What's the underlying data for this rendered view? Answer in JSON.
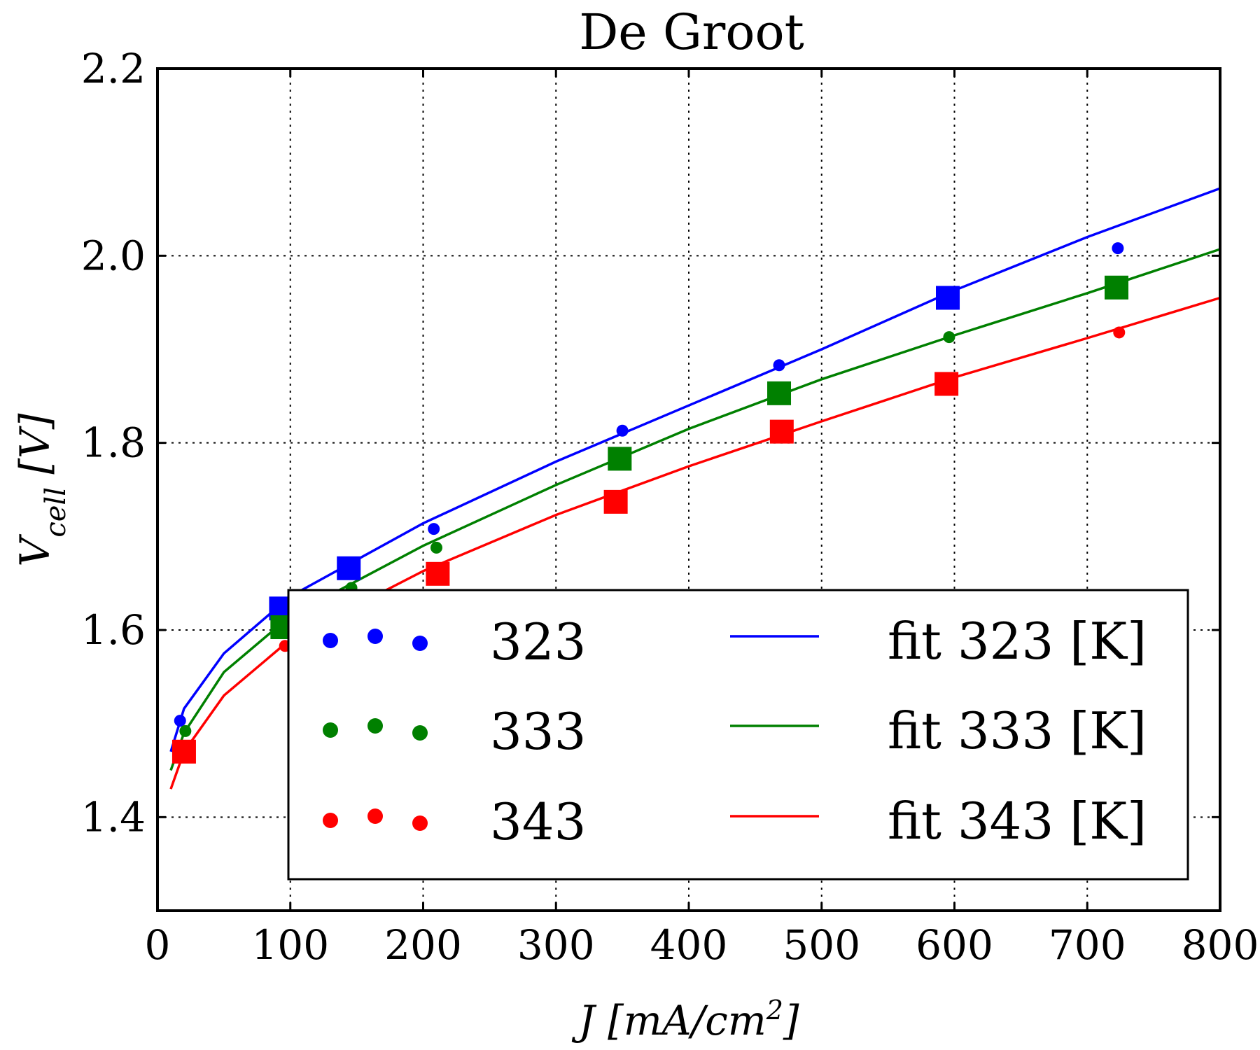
{
  "chart_data": {
    "type": "scatter",
    "title": "De Groot",
    "xlabel": "J [mA/cm²]",
    "ylabel": "Vcell [V]",
    "xlim": [
      0,
      800
    ],
    "ylim": [
      1.3,
      2.2
    ],
    "x_ticks": [
      "0",
      "100",
      "200",
      "300",
      "400",
      "500",
      "600",
      "700",
      "800"
    ],
    "y_ticks": [
      "1.4",
      "1.6",
      "1.8",
      "2.0",
      "2.2"
    ],
    "grid": true,
    "legend_position": "lower-right",
    "series": [
      {
        "name": "323",
        "color": "#0000ff",
        "marker": "circle",
        "points": [
          [
            17,
            1.503
          ],
          [
            208,
            1.708
          ],
          [
            350,
            1.813
          ],
          [
            468,
            1.883
          ],
          [
            723,
            2.008
          ]
        ]
      },
      {
        "name": "333",
        "color": "#008000",
        "marker": "circle",
        "points": [
          [
            21,
            1.492
          ],
          [
            146,
            1.645
          ],
          [
            210,
            1.688
          ],
          [
            596,
            1.913
          ]
        ]
      },
      {
        "name": "343",
        "color": "#ff0000",
        "marker": "circle",
        "points": [
          [
            96,
            1.583
          ],
          [
            724,
            1.918
          ]
        ]
      },
      {
        "name": "323 (square)",
        "color": "#0000ff",
        "marker": "square",
        "points": [
          [
            93,
            1.623
          ],
          [
            144,
            1.666
          ],
          [
            595,
            1.955
          ]
        ]
      },
      {
        "name": "333 (square)",
        "color": "#008000",
        "marker": "square",
        "points": [
          [
            94,
            1.603
          ],
          [
            348,
            1.783
          ],
          [
            468,
            1.853
          ],
          [
            722,
            1.966
          ]
        ]
      },
      {
        "name": "343 (square)",
        "color": "#ff0000",
        "marker": "square",
        "points": [
          [
            20,
            1.47
          ],
          [
            211,
            1.66
          ],
          [
            345,
            1.737
          ],
          [
            470,
            1.812
          ],
          [
            594,
            1.863
          ]
        ]
      }
    ],
    "fits": [
      {
        "name": "fit 323 [K]",
        "color": "#0000ff",
        "points": [
          [
            10,
            1.47
          ],
          [
            20,
            1.516
          ],
          [
            50,
            1.575
          ],
          [
            100,
            1.636
          ],
          [
            200,
            1.714
          ],
          [
            300,
            1.78
          ],
          [
            400,
            1.84
          ],
          [
            500,
            1.9
          ],
          [
            600,
            1.963
          ],
          [
            700,
            2.02
          ],
          [
            800,
            2.072
          ]
        ]
      },
      {
        "name": "fit 333 [K]",
        "color": "#008000",
        "points": [
          [
            10,
            1.45
          ],
          [
            20,
            1.49
          ],
          [
            50,
            1.555
          ],
          [
            100,
            1.615
          ],
          [
            200,
            1.69
          ],
          [
            300,
            1.755
          ],
          [
            400,
            1.815
          ],
          [
            500,
            1.868
          ],
          [
            600,
            1.915
          ],
          [
            700,
            1.96
          ],
          [
            800,
            2.007
          ]
        ]
      },
      {
        "name": "fit 343 [K]",
        "color": "#ff0000",
        "points": [
          [
            10,
            1.43
          ],
          [
            20,
            1.47
          ],
          [
            50,
            1.53
          ],
          [
            100,
            1.59
          ],
          [
            200,
            1.663
          ],
          [
            300,
            1.723
          ],
          [
            400,
            1.775
          ],
          [
            500,
            1.823
          ],
          [
            600,
            1.87
          ],
          [
            700,
            1.912
          ],
          [
            800,
            1.955
          ]
        ]
      }
    ],
    "legend": {
      "scatter_labels": [
        "323",
        "333",
        "343"
      ],
      "line_labels": [
        "fit 323 [K]",
        "fit 333 [K]",
        "fit 343 [K]"
      ]
    }
  }
}
